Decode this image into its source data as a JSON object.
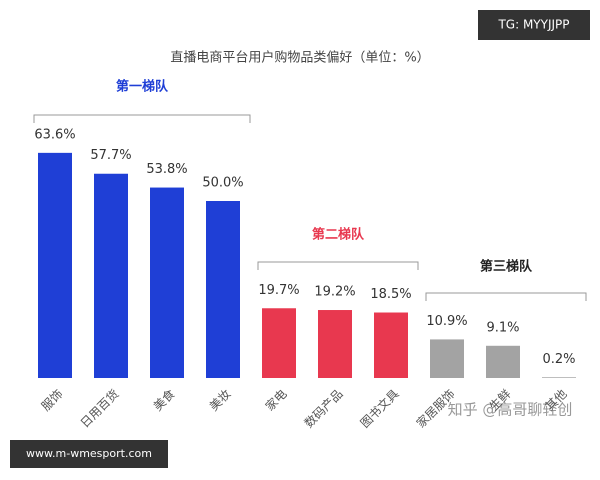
{
  "chart_data": {
    "type": "bar",
    "title": "直播电商平台用户购物品类偏好（单位：%）",
    "series": [
      {
        "name": "第一梯队",
        "color": "#1f3fd6",
        "categories": [
          "服饰",
          "日用百货",
          "美食",
          "美妆"
        ],
        "values": [
          63.6,
          57.7,
          53.8,
          50.0
        ],
        "value_labels": [
          "63.6%",
          "57.7%",
          "53.8%",
          "50.0%"
        ]
      },
      {
        "name": "第二梯队",
        "color": "#e8384f",
        "categories": [
          "家电",
          "数码产品",
          "图书文具"
        ],
        "values": [
          19.7,
          19.2,
          18.5
        ],
        "value_labels": [
          "19.7%",
          "19.2%",
          "18.5%"
        ]
      },
      {
        "name": "第三梯队",
        "color": "#a3a3a3",
        "categories": [
          "家居服饰",
          "生鲜",
          "其他"
        ],
        "values": [
          10.9,
          9.1,
          0.2
        ],
        "value_labels": [
          "10.9%",
          "9.1%",
          "0.2%"
        ]
      }
    ]
  },
  "overlays": {
    "badge": "TG: MYYJJPP",
    "site": "www.m-wmesport.com",
    "watermark": "知乎 @高哥聊轻创"
  }
}
